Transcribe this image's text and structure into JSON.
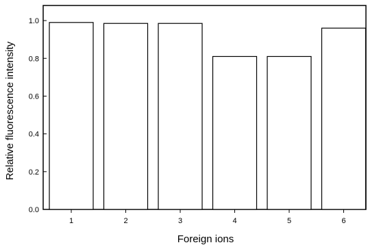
{
  "chart_data": {
    "type": "bar",
    "categories": [
      "1",
      "2",
      "3",
      "4",
      "5",
      "6"
    ],
    "values": [
      0.99,
      0.985,
      0.985,
      0.81,
      0.81,
      0.96
    ],
    "xlabel": "Foreign ions",
    "ylabel": "Relative fluorescence intensity",
    "ylim": [
      0,
      1.08
    ],
    "yticks": [
      "0.0",
      "0.2",
      "0.4",
      "0.6",
      "0.8",
      "1.0"
    ],
    "grid": false,
    "legend": "none",
    "colors": {
      "bar_fill": "#ffffff",
      "bar_stroke": "#000000",
      "axis": "#000000"
    }
  }
}
